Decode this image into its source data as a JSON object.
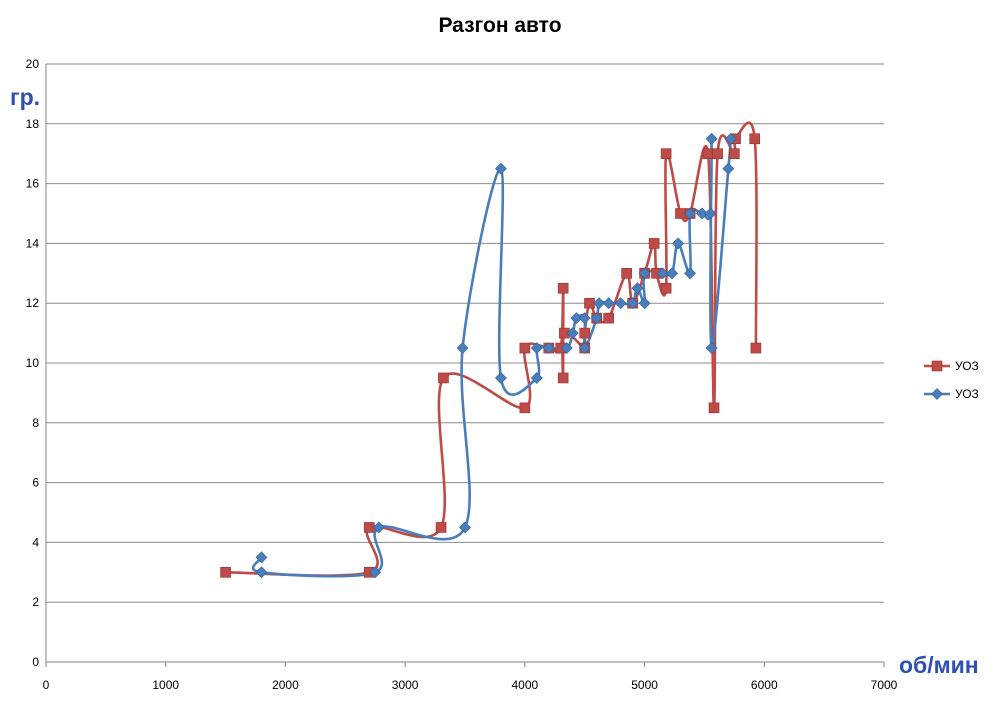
{
  "chart_data": {
    "type": "line",
    "title": "Разгон авто",
    "xlabel": "об/мин",
    "ylabel": "гр.",
    "xlim": [
      0,
      7000
    ],
    "ylim": [
      0,
      20
    ],
    "x_ticks": [
      "0",
      "1000",
      "2000",
      "3000",
      "4000",
      "5000",
      "6000",
      "7000"
    ],
    "y_ticks": [
      "0",
      "2",
      "4",
      "6",
      "8",
      "10",
      "12",
      "14",
      "16",
      "18",
      "20"
    ],
    "grid": "horizontal",
    "legend_position": "right",
    "series": [
      {
        "name": "УОЗ",
        "color": "#be4b48",
        "marker": "square",
        "points": [
          [
            1500,
            3.0
          ],
          [
            2700,
            3.0
          ],
          [
            2700,
            4.5
          ],
          [
            3300,
            4.5
          ],
          [
            3320,
            9.5
          ],
          [
            4000,
            8.5
          ],
          [
            4000,
            10.5
          ],
          [
            4200,
            10.5
          ],
          [
            4300,
            10.5
          ],
          [
            4320,
            12.5
          ],
          [
            4320,
            9.5
          ],
          [
            4330,
            11.0
          ],
          [
            4500,
            10.5
          ],
          [
            4500,
            11.0
          ],
          [
            4540,
            12.0
          ],
          [
            4600,
            11.5
          ],
          [
            4700,
            11.5
          ],
          [
            4850,
            13.0
          ],
          [
            4900,
            12.0
          ],
          [
            5000,
            13.0
          ],
          [
            5080,
            14.0
          ],
          [
            5100,
            13.0
          ],
          [
            5180,
            12.5
          ],
          [
            5180,
            17.0
          ],
          [
            5300,
            15.0
          ],
          [
            5380,
            15.0
          ],
          [
            5530,
            17.0
          ],
          [
            5580,
            8.5
          ],
          [
            5610,
            17.0
          ],
          [
            5750,
            17.0
          ],
          [
            5760,
            17.5
          ],
          [
            5920,
            17.5
          ],
          [
            5930,
            10.5
          ]
        ]
      },
      {
        "name": "УОЗ",
        "color": "#4a7ebb",
        "marker": "diamond",
        "points": [
          [
            1800,
            3.5
          ],
          [
            1800,
            3.0
          ],
          [
            2750,
            3.0
          ],
          [
            2780,
            4.5
          ],
          [
            3500,
            4.5
          ],
          [
            3480,
            10.5
          ],
          [
            3800,
            16.5
          ],
          [
            3800,
            9.5
          ],
          [
            4100,
            9.5
          ],
          [
            4100,
            10.5
          ],
          [
            4200,
            10.5
          ],
          [
            4350,
            10.5
          ],
          [
            4400,
            11.0
          ],
          [
            4430,
            11.5
          ],
          [
            4500,
            11.5
          ],
          [
            4500,
            10.5
          ],
          [
            4600,
            11.5
          ],
          [
            4620,
            12.0
          ],
          [
            4700,
            12.0
          ],
          [
            4800,
            12.0
          ],
          [
            4900,
            12.0
          ],
          [
            4940,
            12.5
          ],
          [
            5000,
            12.0
          ],
          [
            5000,
            13.0
          ],
          [
            5150,
            13.0
          ],
          [
            5230,
            13.0
          ],
          [
            5280,
            14.0
          ],
          [
            5380,
            13.0
          ],
          [
            5380,
            15.0
          ],
          [
            5480,
            15.0
          ],
          [
            5550,
            15.0
          ],
          [
            5560,
            17.5
          ],
          [
            5560,
            10.5
          ],
          [
            5700,
            16.5
          ],
          [
            5720,
            17.5
          ]
        ]
      }
    ]
  }
}
